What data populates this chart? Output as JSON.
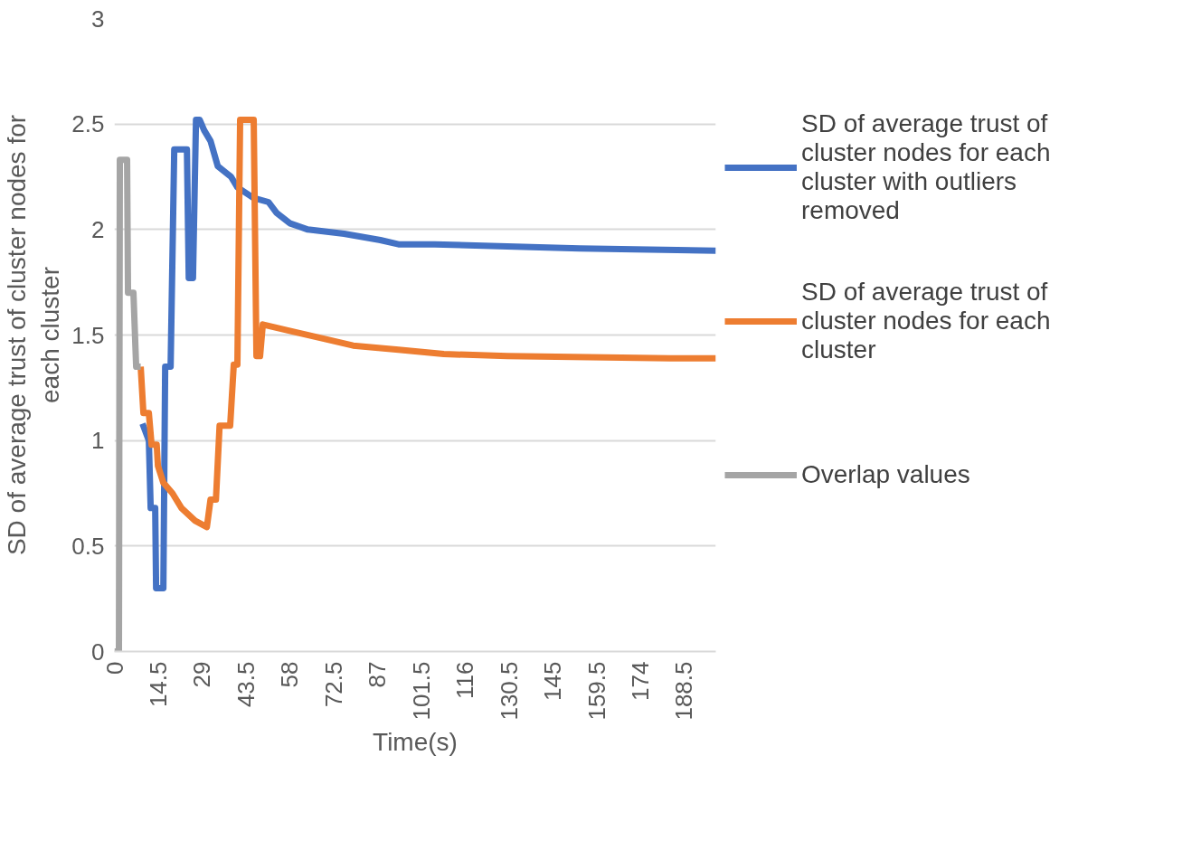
{
  "chart_data": {
    "type": "line",
    "xlabel": "Time(s)",
    "ylabel": "SD of average trust of cluster nodes for each cluster",
    "xlim": [
      0,
      199
    ],
    "ylim": [
      0,
      3
    ],
    "xticks": [
      0,
      14.5,
      29,
      43.5,
      58,
      72.5,
      87,
      101.5,
      116,
      130.5,
      145,
      159.5,
      174,
      188.5
    ],
    "yticks": [
      0,
      0.5,
      1,
      1.5,
      2,
      2.5,
      3
    ],
    "grid": "y",
    "legend": "right",
    "marker": "none",
    "line_style": "solid",
    "series": [
      {
        "name": "SD of average trust of cluster nodes for each cluster with outliers removed",
        "color": "#4472c4",
        "x": [
          9.3,
          11.4,
          12,
          13.5,
          13.8,
          16.2,
          16.8,
          18.6,
          19.8,
          24,
          24.6,
          26,
          27,
          28.2,
          29.7,
          31.8,
          34.2,
          38.6,
          40.7,
          46,
          51,
          53.6,
          58,
          64,
          76,
          88,
          94,
          106,
          130,
          154,
          199
        ],
        "values": [
          1.08,
          1.0,
          0.68,
          0.68,
          0.3,
          0.3,
          1.35,
          1.35,
          2.38,
          2.38,
          1.77,
          1.77,
          2.52,
          2.52,
          2.47,
          2.42,
          2.3,
          2.25,
          2.2,
          2.15,
          2.13,
          2.08,
          2.03,
          2.0,
          1.98,
          1.95,
          1.93,
          1.93,
          1.92,
          1.91,
          1.9
        ]
      },
      {
        "name": "SD of average trust of cluster nodes for each cluster",
        "color": "#ed7d31",
        "x": [
          8.7,
          9.6,
          11.4,
          12.3,
          14,
          14.4,
          16.2,
          19.2,
          22.2,
          26.7,
          30.6,
          31.8,
          33.6,
          34.8,
          38.3,
          39.5,
          40.7,
          41.6,
          46.1,
          47,
          48.2,
          49.1,
          58,
          70,
          79,
          94,
          109,
          130,
          184,
          199
        ],
        "values": [
          1.35,
          1.13,
          1.13,
          0.98,
          0.98,
          0.88,
          0.8,
          0.75,
          0.68,
          0.62,
          0.59,
          0.72,
          0.72,
          1.07,
          1.07,
          1.36,
          1.36,
          2.52,
          2.52,
          1.4,
          1.4,
          1.55,
          1.52,
          1.48,
          1.45,
          1.43,
          1.41,
          1.4,
          1.39,
          1.39
        ]
      },
      {
        "name": "Overlap values",
        "color": "#a5a5a5",
        "x": [
          0,
          1.5,
          1.8,
          4.2,
          4.5,
          6.3,
          7.2,
          8.7
        ],
        "values": [
          0,
          0,
          2.33,
          2.33,
          1.7,
          1.7,
          1.35,
          1.35
        ]
      }
    ]
  }
}
